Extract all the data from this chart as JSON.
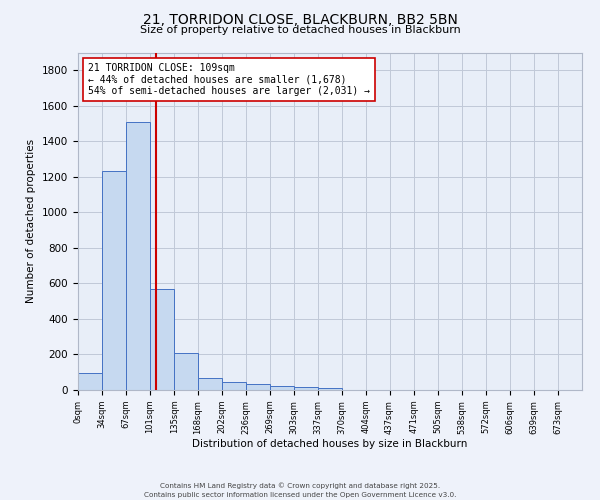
{
  "title": "21, TORRIDON CLOSE, BLACKBURN, BB2 5BN",
  "subtitle": "Size of property relative to detached houses in Blackburn",
  "xlabel": "Distribution of detached houses by size in Blackburn",
  "ylabel": "Number of detached properties",
  "bar_labels": [
    "0sqm",
    "34sqm",
    "67sqm",
    "101sqm",
    "135sqm",
    "168sqm",
    "202sqm",
    "236sqm",
    "269sqm",
    "303sqm",
    "337sqm",
    "370sqm",
    "404sqm",
    "437sqm",
    "471sqm",
    "505sqm",
    "538sqm",
    "572sqm",
    "606sqm",
    "639sqm",
    "673sqm"
  ],
  "bar_values": [
    95,
    1235,
    1510,
    570,
    210,
    65,
    45,
    35,
    25,
    15,
    10,
    0,
    0,
    0,
    0,
    0,
    0,
    0,
    0,
    0,
    0
  ],
  "bar_edges": [
    0,
    34,
    67,
    101,
    135,
    168,
    202,
    236,
    269,
    303,
    337,
    370,
    404,
    437,
    471,
    505,
    538,
    572,
    606,
    639,
    673
  ],
  "bar_color": "#c6d9f0",
  "bar_edge_color": "#4472c4",
  "property_value": 109,
  "redline_color": "#cc0000",
  "annotation_line1": "21 TORRIDON CLOSE: 109sqm",
  "annotation_line2": "← 44% of detached houses are smaller (1,678)",
  "annotation_line3": "54% of semi-detached houses are larger (2,031) →",
  "annotation_box_color": "#ffffff",
  "annotation_box_edge": "#cc0000",
  "ylim": [
    0,
    1900
  ],
  "yticks": [
    0,
    200,
    400,
    600,
    800,
    1000,
    1200,
    1400,
    1600,
    1800
  ],
  "grid_color": "#c0c8d8",
  "bg_color": "#e8eef8",
  "fig_bg_color": "#eef2fa",
  "footer1": "Contains HM Land Registry data © Crown copyright and database right 2025.",
  "footer2": "Contains public sector information licensed under the Open Government Licence v3.0."
}
